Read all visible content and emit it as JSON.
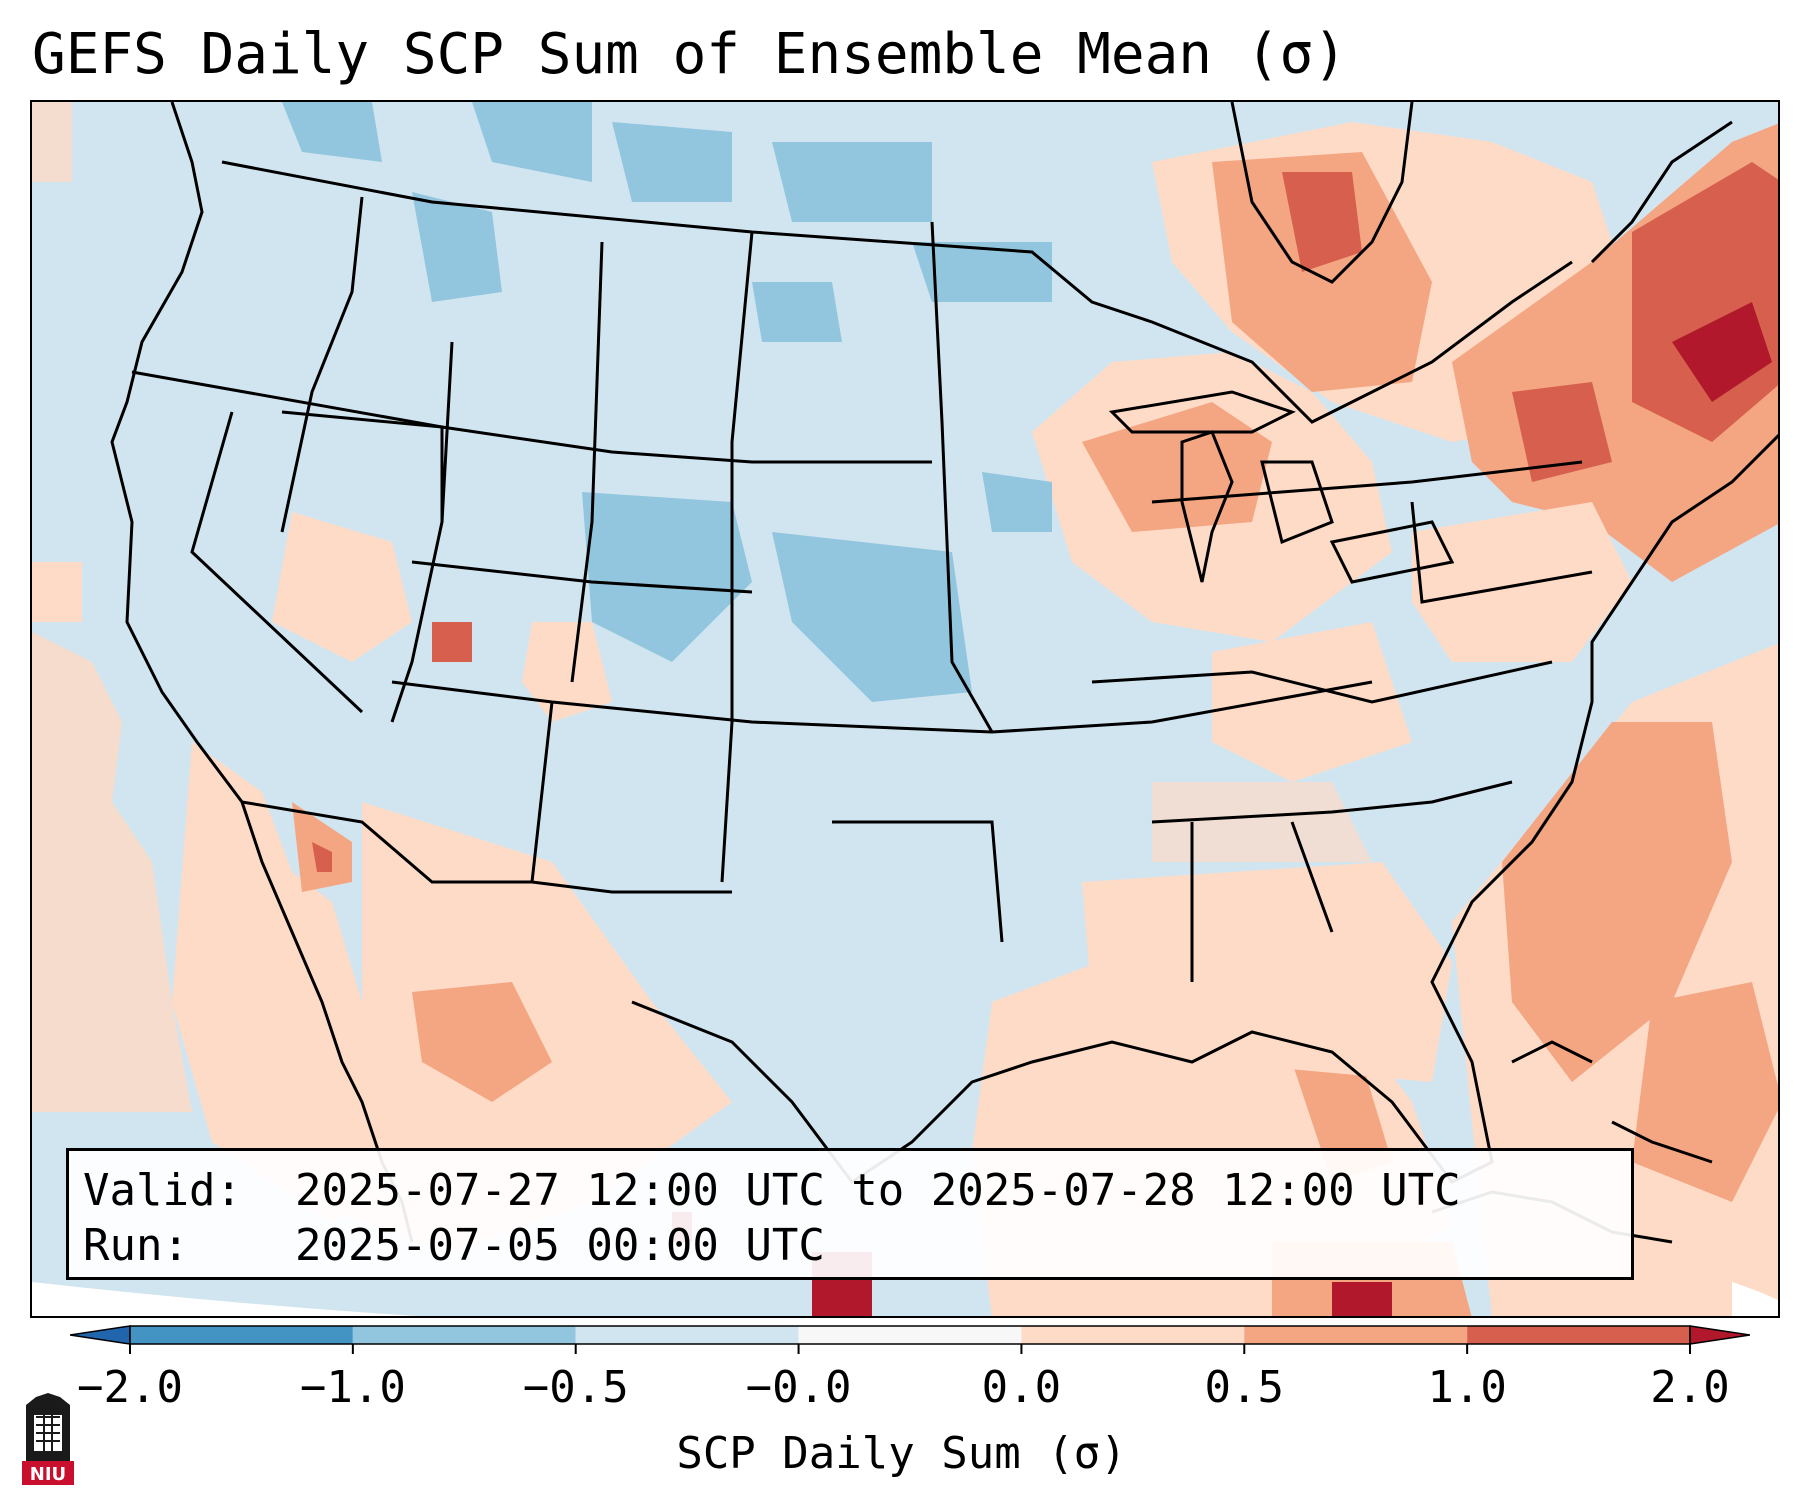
{
  "title": "GEFS Daily SCP Sum of Ensemble Mean (σ)",
  "info": {
    "valid_label": "Valid:",
    "valid_value": "2025-07-27 12:00 UTC to 2025-07-28 12:00 UTC",
    "run_label": "Run:",
    "run_value": "2025-07-05 00:00 UTC"
  },
  "colorbar": {
    "label": "SCP Daily Sum (σ)",
    "ticks": [
      "−2.0",
      "−1.0",
      "−0.5",
      "−0.0",
      "0.0",
      "0.5",
      "1.0",
      "2.0"
    ],
    "bins": [
      {
        "range": "< -2.0",
        "color": "#2166ac"
      },
      {
        "range": "-2.0 to -1.0",
        "color": "#4393c3"
      },
      {
        "range": "-1.0 to -0.5",
        "color": "#92c5de"
      },
      {
        "range": "-0.5 to -0.0",
        "color": "#d1e5f0"
      },
      {
        "range": "-0.0 to 0.0",
        "color": "#f7f7f7"
      },
      {
        "range": "0.0 to 0.5",
        "color": "#fddbc7"
      },
      {
        "range": "0.5 to 1.0",
        "color": "#f4a582"
      },
      {
        "range": "1.0 to 2.0",
        "color": "#d6604d"
      },
      {
        "range": "> 2.0",
        "color": "#b2182b"
      }
    ]
  },
  "map": {
    "background_color": "#d1e5f0",
    "boundary_color": "#000000"
  },
  "logo": {
    "text": "NIU",
    "brand_color": "#c8102e"
  }
}
